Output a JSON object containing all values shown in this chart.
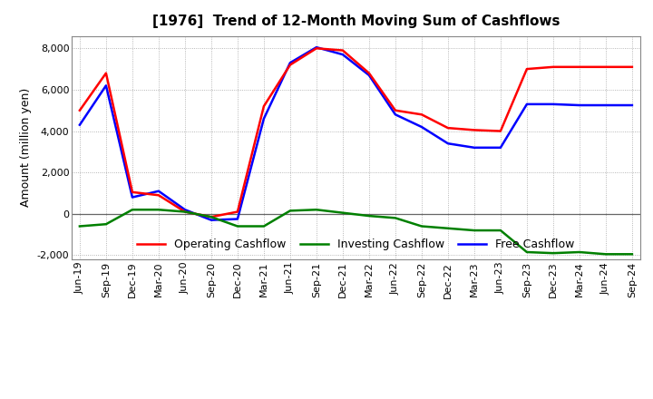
{
  "title": "[1976]  Trend of 12-Month Moving Sum of Cashflows",
  "ylabel": "Amount (million yen)",
  "x_labels": [
    "Jun-19",
    "Sep-19",
    "Dec-19",
    "Mar-20",
    "Jun-20",
    "Sep-20",
    "Dec-20",
    "Mar-21",
    "Jun-21",
    "Sep-21",
    "Dec-21",
    "Mar-22",
    "Jun-22",
    "Sep-22",
    "Dec-22",
    "Mar-23",
    "Jun-23",
    "Sep-23",
    "Dec-23",
    "Mar-24",
    "Jun-24",
    "Sep-24"
  ],
  "operating": [
    5000,
    6800,
    1050,
    900,
    100,
    -150,
    100,
    5200,
    7200,
    8000,
    7900,
    6800,
    5000,
    4800,
    4150,
    4050,
    4000,
    7000,
    7100,
    7100,
    7100,
    7100
  ],
  "investing": [
    -600,
    -500,
    200,
    200,
    100,
    -150,
    -600,
    -600,
    150,
    200,
    50,
    -100,
    -200,
    -600,
    -700,
    -800,
    -800,
    -1850,
    -1900,
    -1850,
    -1950,
    -1950
  ],
  "free": [
    4300,
    6200,
    800,
    1100,
    200,
    -300,
    -250,
    4600,
    7300,
    8050,
    7700,
    6700,
    4800,
    4200,
    3400,
    3200,
    3200,
    5300,
    5300,
    5250,
    5250,
    5250
  ],
  "operating_color": "#ff0000",
  "investing_color": "#008000",
  "free_color": "#0000ff",
  "bg_color": "#ffffff",
  "plot_bg_color": "#ffffff",
  "grid_color": "#999999",
  "ylim": [
    -2200,
    8600
  ],
  "yticks": [
    -2000,
    0,
    2000,
    4000,
    6000,
    8000
  ],
  "linewidth": 1.8,
  "legend_labels": [
    "Operating Cashflow",
    "Investing Cashflow",
    "Free Cashflow"
  ],
  "title_fontsize": 11,
  "tick_fontsize": 8,
  "ylabel_fontsize": 9
}
